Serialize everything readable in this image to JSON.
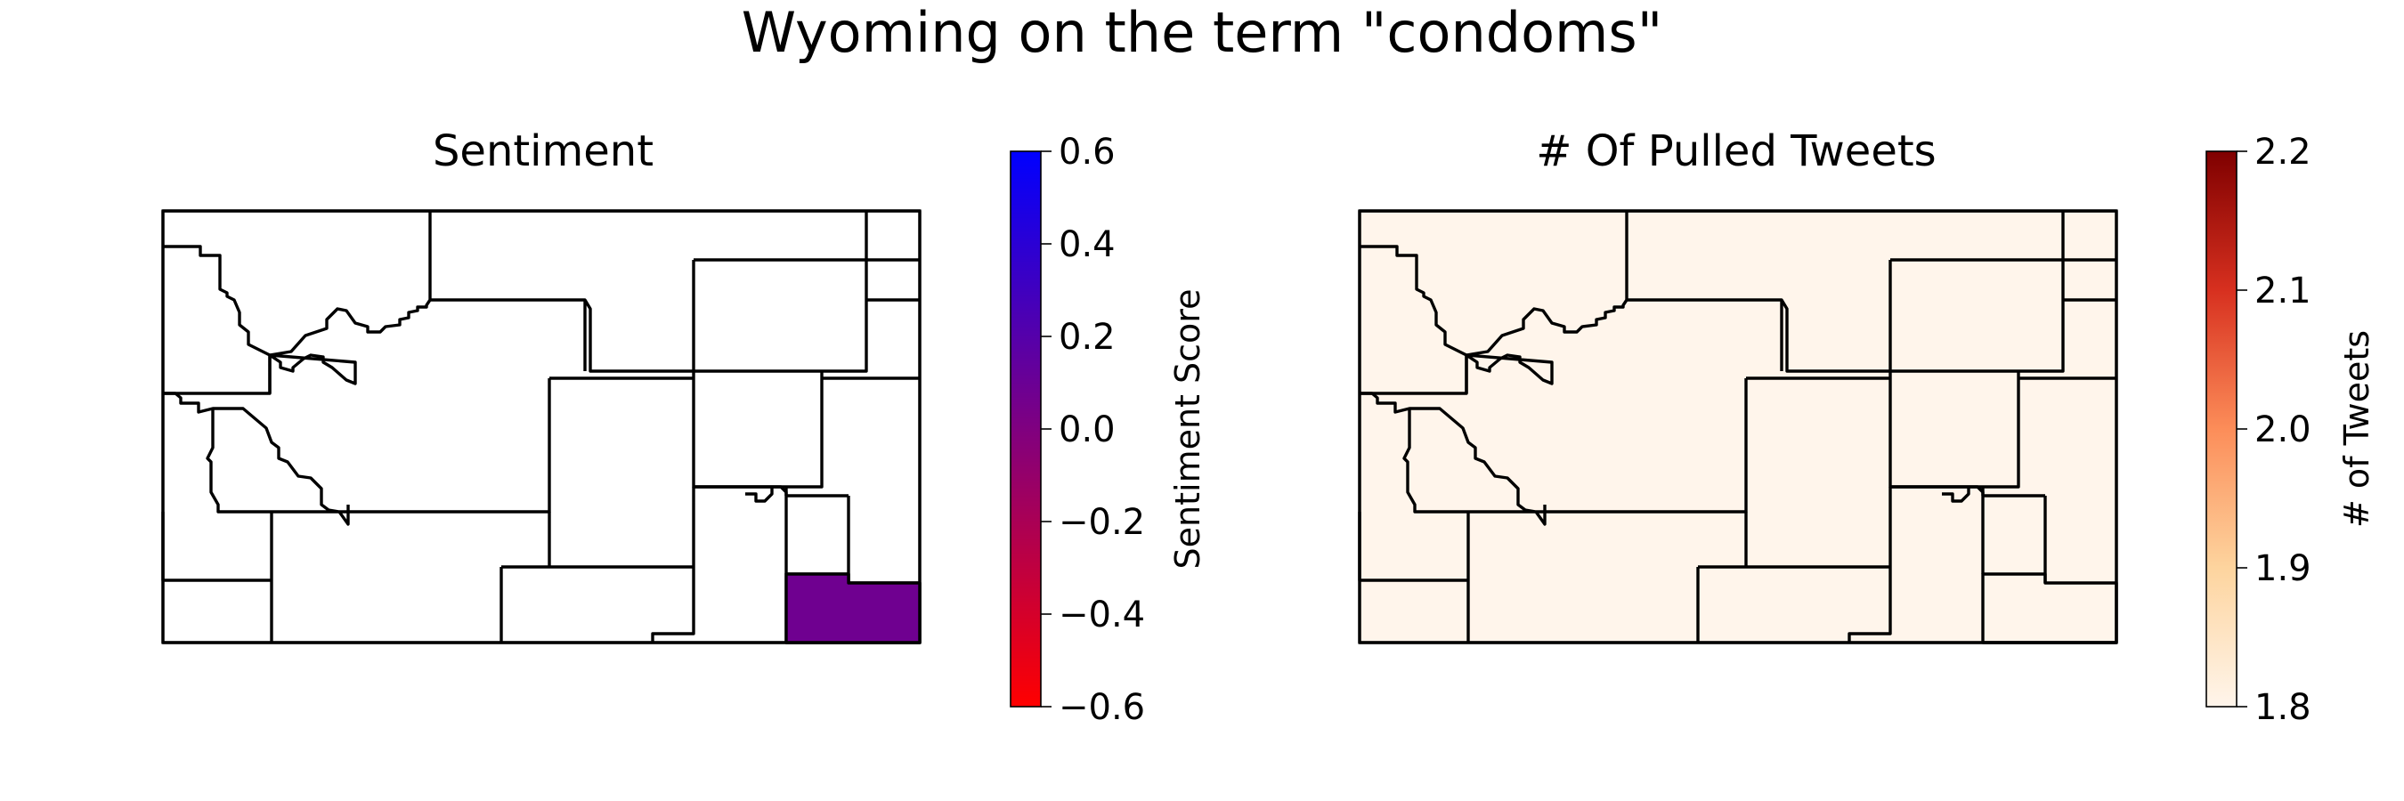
{
  "figure": {
    "title": "Wyoming on the term \"condoms\""
  },
  "panels": [
    {
      "title": "Sentiment",
      "colorbar": {
        "label": "Sentiment Score",
        "ticks": [
          "0.6",
          "0.4",
          "0.2",
          "0.0",
          "−0.2",
          "−0.4",
          "−0.6"
        ],
        "range": [
          -0.6,
          0.6
        ],
        "colormap": [
          "#ff0000",
          "#0000ff"
        ]
      },
      "default_fill": "#ffffff",
      "highlighted_county_fill": "#6f0090"
    },
    {
      "title": "# Of Pulled Tweets",
      "colorbar": {
        "label": "# of Tweets",
        "ticks": [
          "2.2",
          "2.1",
          "2.0",
          "1.9",
          "1.8"
        ],
        "range": [
          1.8,
          2.2
        ],
        "colormap": [
          "#fff5eb",
          "#fdd49e",
          "#fc8d59",
          "#d7301f",
          "#7f0000"
        ]
      },
      "default_fill": "#fff5eb"
    }
  ]
}
